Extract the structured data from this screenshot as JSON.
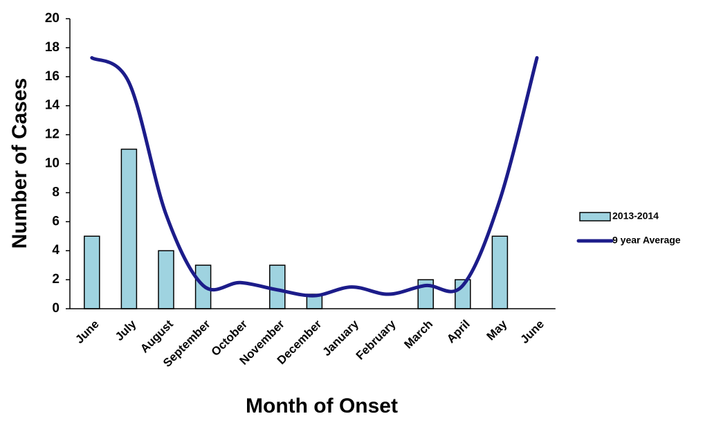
{
  "chart_data": {
    "type": "bar_line",
    "x_label": "Month of Onset",
    "y_label": "Number of Cases",
    "categories": [
      "June",
      "July",
      "August",
      "September",
      "October",
      "November",
      "December",
      "January",
      "February",
      "March",
      "April",
      "May",
      "June"
    ],
    "series": [
      {
        "name": "2013-2014",
        "type": "bar",
        "color": "#9fd3e0",
        "values": [
          5,
          11,
          4,
          3,
          0,
          3,
          1,
          0,
          0,
          2,
          2,
          5,
          null
        ]
      },
      {
        "name": "9 year Average",
        "type": "line",
        "color": "#1c1c8a",
        "values": [
          17.3,
          15.6,
          6.5,
          1.6,
          1.8,
          1.3,
          0.9,
          1.5,
          1.0,
          1.6,
          1.6,
          7.5,
          17.3
        ]
      }
    ],
    "ylim": [
      0,
      20
    ],
    "yticks": [
      0,
      2,
      4,
      6,
      8,
      10,
      12,
      14,
      16,
      18,
      20
    ],
    "grid": false,
    "legend": "right"
  }
}
